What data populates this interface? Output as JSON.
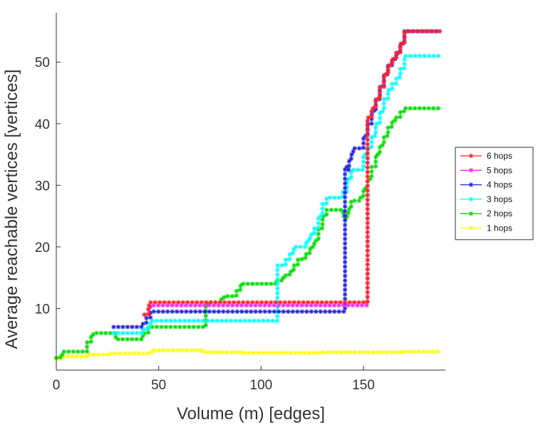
{
  "chart_data": {
    "type": "line",
    "title": "",
    "xlabel": "Volume (m) [edges]",
    "ylabel": "Average reachable vertices [vertices]",
    "xlim": [
      0,
      190
    ],
    "ylim": [
      0,
      58
    ],
    "xticks": [
      0,
      50,
      100,
      150
    ],
    "yticks": [
      10,
      20,
      30,
      40,
      50
    ],
    "grid": false,
    "legend_position": "right",
    "series": [
      {
        "name": "1 hops",
        "color": "#ffff00",
        "x": [
          0,
          2,
          15,
          25,
          45,
          47,
          55,
          72,
          90,
          110,
          130,
          150,
          170,
          188
        ],
        "y": [
          1.8,
          2.2,
          2.5,
          2.7,
          2.9,
          3.2,
          3.2,
          2.9,
          2.8,
          2.8,
          2.9,
          2.9,
          3.0,
          3.0
        ]
      },
      {
        "name": "2 hops",
        "color": "#00dd00",
        "x": [
          0,
          2,
          3,
          14,
          15,
          17,
          18,
          28,
          29,
          40,
          42,
          43,
          45,
          72,
          73,
          74,
          78,
          80,
          82,
          84,
          86,
          88,
          90,
          92,
          100,
          103,
          105,
          107,
          110,
          112,
          114,
          116,
          118,
          120,
          122,
          124,
          126,
          128,
          130,
          132,
          134,
          136,
          138,
          140,
          141,
          142,
          143,
          144,
          146,
          148,
          150,
          152,
          154,
          156,
          158,
          160,
          162,
          164,
          166,
          168,
          170,
          188
        ],
        "y": [
          2,
          2.5,
          3,
          3,
          4.5,
          5.5,
          6,
          6,
          5,
          5,
          5.5,
          6,
          7,
          7,
          10.5,
          11,
          11,
          11.5,
          12,
          12,
          12,
          13,
          14,
          14,
          14,
          14,
          14,
          14.5,
          15,
          15.5,
          16,
          17,
          18,
          18.2,
          19,
          20,
          21,
          23,
          25,
          26,
          26,
          26,
          26,
          25,
          24.5,
          25.5,
          26.5,
          27.5,
          27.5,
          28,
          29.5,
          31,
          33,
          35,
          36.5,
          38,
          39.5,
          40.5,
          41,
          42,
          42.5,
          42.5
        ]
      },
      {
        "name": "3 hops",
        "color": "#00ffff",
        "x": [
          28,
          40,
          42,
          44,
          46,
          72,
          108,
          110,
          112,
          114,
          116,
          118,
          120,
          122,
          124,
          126,
          128,
          130,
          132,
          134,
          136,
          138,
          140,
          142,
          144,
          146,
          148,
          150,
          152,
          154,
          156,
          158,
          160,
          162,
          164,
          166,
          168,
          170,
          188
        ],
        "y": [
          6,
          6,
          6.5,
          7,
          8,
          8,
          17,
          17,
          18,
          19,
          20,
          20,
          20,
          21,
          22,
          23,
          25,
          27,
          28,
          28,
          28,
          28,
          29,
          31,
          32.5,
          32.5,
          32.5,
          35,
          36,
          38,
          40,
          42,
          44,
          45.5,
          46.5,
          47.5,
          49,
          51,
          51
        ]
      },
      {
        "name": "4 hops",
        "color": "#2222dd",
        "x": [
          28,
          40,
          42,
          44,
          46,
          72,
          141,
          142,
          143,
          144,
          145,
          146,
          148,
          150,
          152,
          154,
          156,
          158,
          160,
          162,
          164,
          166,
          168,
          170,
          188
        ],
        "y": [
          7,
          7,
          7.5,
          8.5,
          9.5,
          9.5,
          33,
          32.5,
          34,
          35,
          36,
          36,
          36,
          38,
          40,
          42,
          44,
          46,
          48,
          49.5,
          50.5,
          51.5,
          53,
          55,
          55
        ]
      },
      {
        "name": "5 hops",
        "color": "#ff22ff",
        "x": [
          43,
          45,
          46,
          72,
          152,
          154,
          156,
          158,
          160,
          162,
          164,
          166,
          168,
          170,
          188
        ],
        "y": [
          9,
          10,
          10.5,
          10.5,
          41,
          42.5,
          44,
          46,
          48,
          49.5,
          50.5,
          51.5,
          53,
          55,
          55
        ]
      },
      {
        "name": "6 hops",
        "color": "#ff2222",
        "x": [
          43,
          45,
          46,
          72,
          152,
          154,
          156,
          158,
          160,
          162,
          164,
          166,
          168,
          170,
          188
        ],
        "y": [
          9,
          10.5,
          11,
          11,
          41,
          42.5,
          44,
          46,
          48,
          49.5,
          50.5,
          51.5,
          53,
          55,
          55
        ]
      }
    ],
    "legend_order": [
      "6 hops",
      "5 hops",
      "4 hops",
      "3 hops",
      "2 hops",
      "1 hops"
    ]
  }
}
